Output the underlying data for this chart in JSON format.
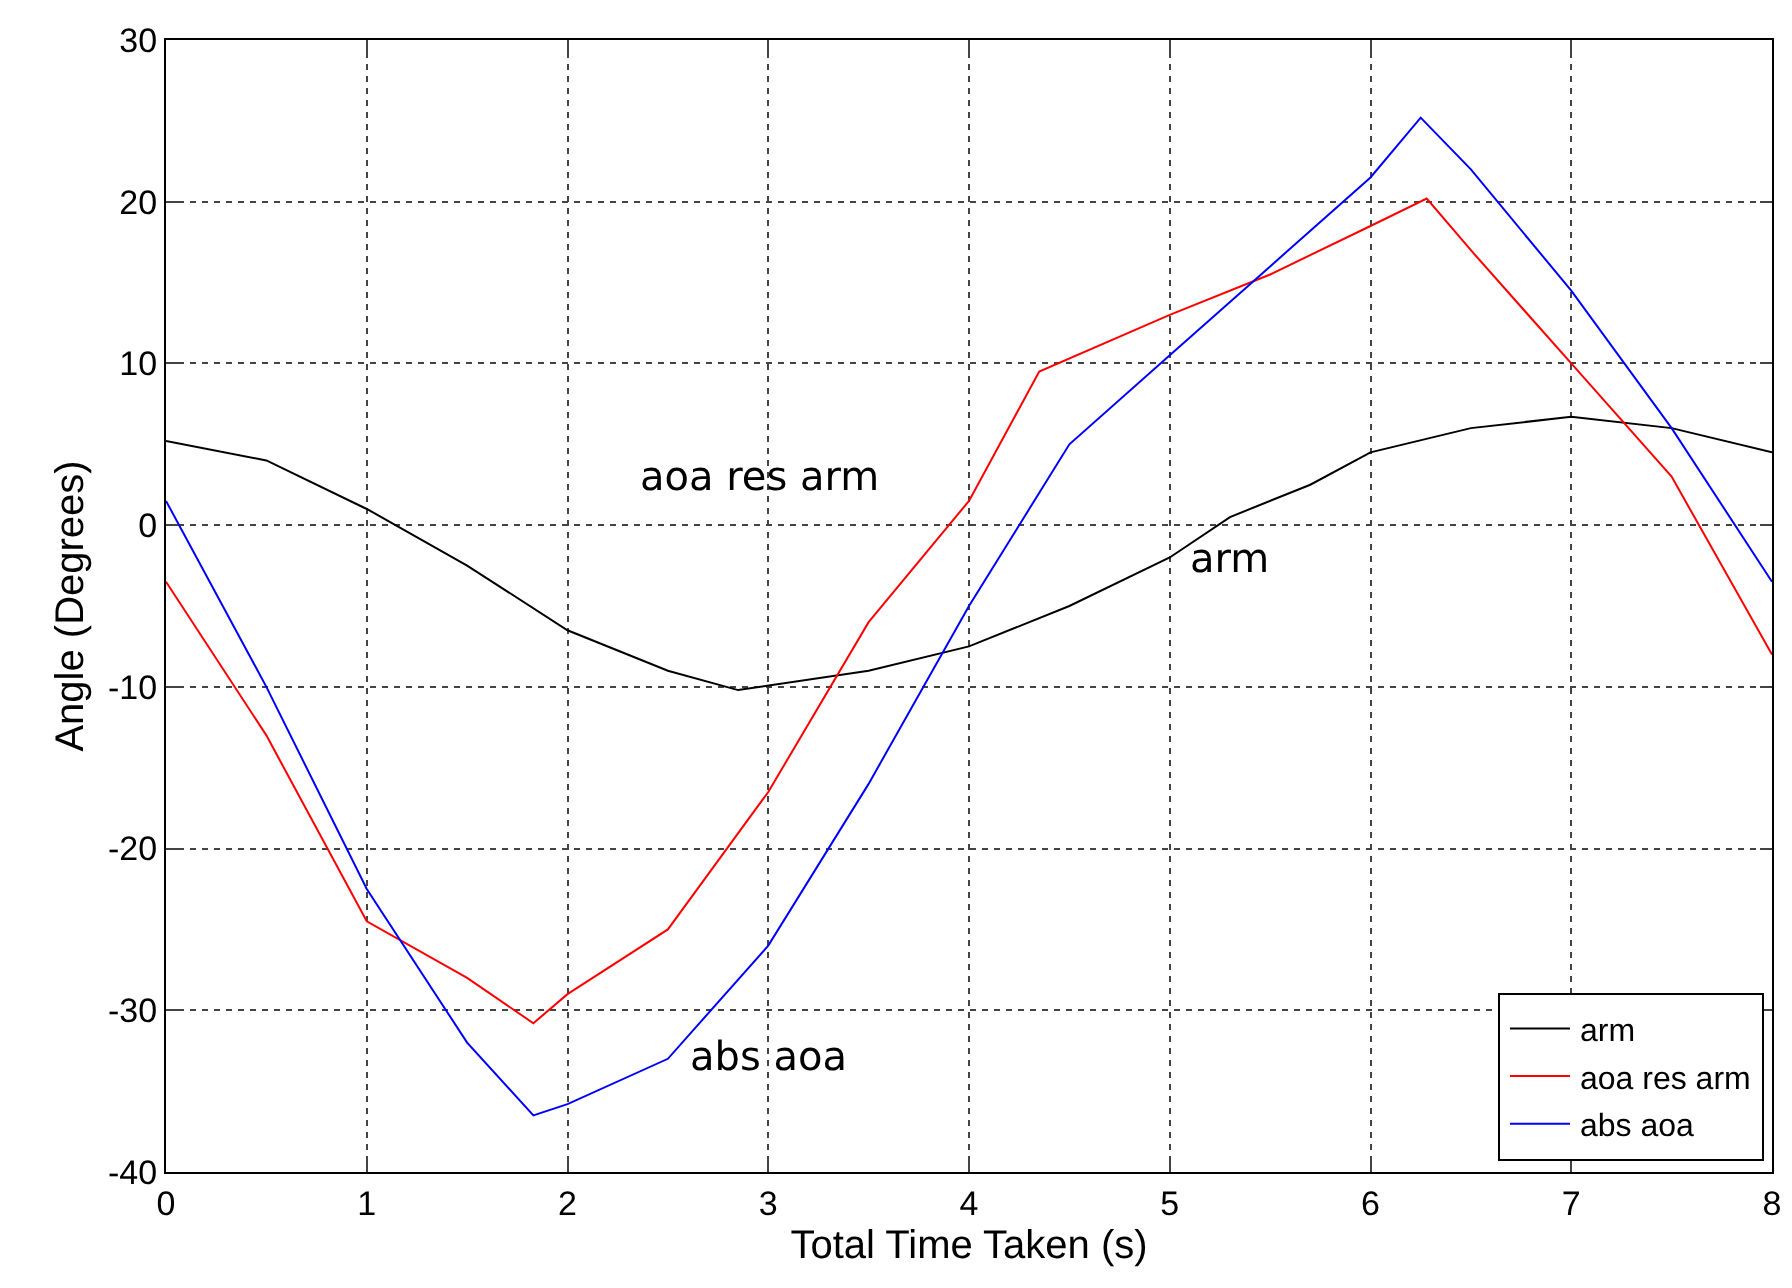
{
  "chart_data": {
    "type": "line",
    "xlabel": "Total Time Taken (s)",
    "ylabel": "Angle (Degrees)",
    "xlim": [
      0,
      8
    ],
    "xticks": [
      0,
      1,
      2,
      3,
      4,
      5,
      6,
      7,
      8
    ],
    "ylim": [
      -40,
      30
    ],
    "yticks": [
      -40,
      -30,
      -20,
      -10,
      0,
      10,
      20,
      30
    ],
    "grid": true,
    "legend": "bottom right",
    "line_style": "solid",
    "marker": "none",
    "annotations": [
      "aoa res arm",
      "arm",
      "abs aoa"
    ],
    "series": [
      {
        "name": "arm",
        "color": "#000000",
        "x": [
          0,
          0.5,
          1,
          1.5,
          2,
          2.5,
          2.85,
          3.5,
          4,
          4.5,
          5,
          5.3,
          5.7,
          6,
          6.5,
          7,
          7.5,
          8
        ],
        "values": [
          5.2,
          4,
          1,
          -2.5,
          -6.5,
          -9,
          -10.2,
          -9,
          -7.5,
          -5,
          -2,
          0.5,
          2.5,
          4.5,
          6,
          6.7,
          6,
          4.5
        ]
      },
      {
        "name": "aoa res arm",
        "color": "#ff0000",
        "x": [
          0,
          0.5,
          1,
          1.5,
          1.83,
          2,
          2.5,
          3,
          3.5,
          4,
          4.35,
          5,
          5.5,
          6,
          6.28,
          6.5,
          7,
          7.5,
          8
        ],
        "values": [
          -3.5,
          -13,
          -24.5,
          -28,
          -30.8,
          -29,
          -25,
          -16.5,
          -6,
          1.5,
          9.5,
          13,
          15.5,
          18.5,
          20.2,
          17,
          10,
          3,
          -8
        ]
      },
      {
        "name": "abs aoa",
        "color": "#0000ff",
        "x": [
          0,
          0.5,
          1,
          1.5,
          1.83,
          2,
          2.5,
          3,
          3.5,
          4,
          4.5,
          5,
          5.5,
          6,
          6.25,
          6.5,
          7,
          7.5,
          8
        ],
        "values": [
          1.5,
          -10,
          -22.5,
          -32,
          -36.5,
          -35.8,
          -33,
          -26,
          -16,
          -5,
          5,
          10.5,
          16,
          21.5,
          25.2,
          22,
          14.5,
          6,
          -3.5
        ]
      }
    ]
  }
}
